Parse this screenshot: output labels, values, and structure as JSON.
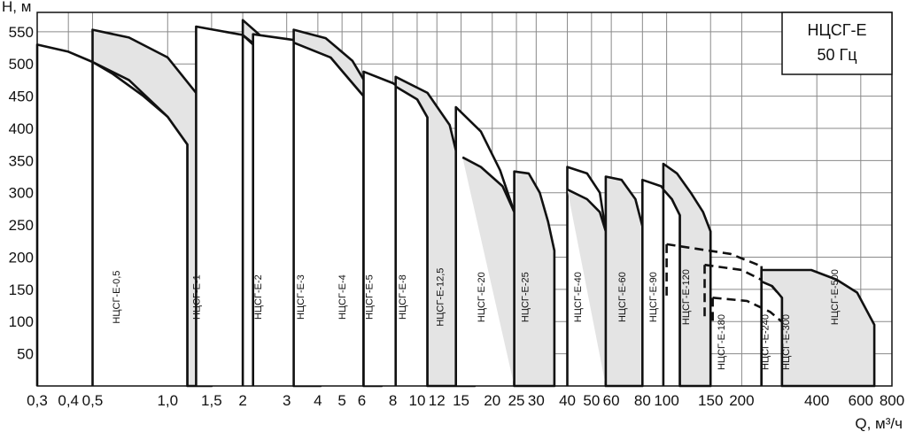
{
  "chart_data": {
    "type": "area",
    "xlabel": "Q, м³/ч",
    "ylabel": "Н, м",
    "x_scale": "log",
    "xlim": [
      0.3,
      800
    ],
    "ylim": [
      0,
      580
    ],
    "grid": true,
    "x_ticks": [
      {
        "value": 0.3,
        "label": "0,3"
      },
      {
        "value": 0.4,
        "label": "0,4"
      },
      {
        "value": 0.5,
        "label": "0,5"
      },
      {
        "value": 1.0,
        "label": "1,0"
      },
      {
        "value": 1.5,
        "label": "1,5"
      },
      {
        "value": 2,
        "label": "2"
      },
      {
        "value": 3,
        "label": "3"
      },
      {
        "value": 4,
        "label": "4"
      },
      {
        "value": 5,
        "label": "5"
      },
      {
        "value": 6,
        "label": "6"
      },
      {
        "value": 8,
        "label": "8"
      },
      {
        "value": 10,
        "label": "10"
      },
      {
        "value": 12,
        "label": "12"
      },
      {
        "value": 15,
        "label": "15"
      },
      {
        "value": 20,
        "label": "20"
      },
      {
        "value": 25,
        "label": "25"
      },
      {
        "value": 30,
        "label": "30"
      },
      {
        "value": 40,
        "label": "40"
      },
      {
        "value": 50,
        "label": "50"
      },
      {
        "value": 60,
        "label": "60"
      },
      {
        "value": 80,
        "label": "80"
      },
      {
        "value": 100,
        "label": "100"
      },
      {
        "value": 150,
        "label": "150"
      },
      {
        "value": 200,
        "label": "200"
      },
      {
        "value": 400,
        "label": "400"
      },
      {
        "value": 600,
        "label": "600"
      },
      {
        "value": 800,
        "label": "800"
      }
    ],
    "y_ticks": [
      50,
      100,
      150,
      200,
      250,
      300,
      350,
      400,
      450,
      500,
      550
    ],
    "legend": {
      "line1": "НЦСГ-Е",
      "line2": "50 Гц",
      "position": "top-right"
    },
    "series": [
      {
        "name": "НЦСГ-Е-0,5",
        "style": "open",
        "label_q": 0.62,
        "top": [
          [
            0.3,
            530
          ],
          [
            0.4,
            519
          ],
          [
            0.5,
            503
          ],
          [
            0.6,
            485
          ],
          [
            0.8,
            450
          ],
          [
            1.0,
            418
          ],
          [
            1.2,
            375
          ]
        ],
        "bottom": []
      },
      {
        "name": "НЦСГ-Е-1",
        "style": "filled",
        "label_q": 1.3,
        "top": [
          [
            0.5,
            553
          ],
          [
            0.7,
            541
          ],
          [
            1.0,
            510
          ],
          [
            1.3,
            455
          ],
          [
            1.5,
            403
          ]
        ],
        "bottom": [
          [
            0.5,
            503
          ],
          [
            0.7,
            475
          ],
          [
            1.0,
            418
          ],
          [
            1.2,
            375
          ]
        ]
      },
      {
        "name": "НЦСГ-Е-2",
        "style": "open",
        "label_q": 2.3,
        "top": [
          [
            1.3,
            558
          ],
          [
            2.0,
            545
          ],
          [
            2.5,
            510
          ],
          [
            3.2,
            425
          ]
        ],
        "bottom": []
      },
      {
        "name": "НЦСГ-Е-3",
        "style": "filled",
        "label_q": 3.4,
        "top": [
          [
            2.0,
            568
          ],
          [
            2.5,
            535
          ],
          [
            3.2,
            480
          ],
          [
            3.8,
            400
          ],
          [
            4.1,
            335
          ]
        ],
        "bottom": [
          [
            2.0,
            545
          ],
          [
            2.5,
            515
          ],
          [
            3.2,
            425
          ]
        ]
      },
      {
        "name": "НЦСГ-Е-4",
        "style": "open",
        "label_q": 5.0,
        "top": [
          [
            2.2,
            546
          ],
          [
            3.5,
            535
          ],
          [
            4.5,
            510
          ],
          [
            6.1,
            450
          ]
        ],
        "bottom": []
      },
      {
        "name": "НЦСГ-Е-5",
        "style": "filled",
        "label_q": 6.4,
        "top": [
          [
            3.2,
            553
          ],
          [
            4.3,
            540
          ],
          [
            5.5,
            505
          ],
          [
            6.8,
            445
          ],
          [
            7.2,
            403
          ]
        ],
        "bottom": [
          [
            3.2,
            533
          ],
          [
            4.5,
            510
          ],
          [
            6.1,
            450
          ]
        ]
      },
      {
        "name": "НЦСГ-Е-8",
        "style": "open",
        "label_q": 8.7,
        "top": [
          [
            6.1,
            488
          ],
          [
            8.0,
            470
          ],
          [
            10.0,
            445
          ],
          [
            11.0,
            417
          ]
        ],
        "bottom": []
      },
      {
        "name": "НЦСГ-Е-12,5",
        "style": "filled",
        "label_q": 12.3,
        "top": [
          [
            8.2,
            480
          ],
          [
            11.0,
            455
          ],
          [
            13.5,
            405
          ],
          [
            15.5,
            310
          ],
          [
            17.0,
            185
          ]
        ],
        "bottom": [
          [
            8.2,
            465
          ],
          [
            10.0,
            445
          ],
          [
            11.0,
            417
          ]
        ]
      },
      {
        "name": "НЦСГ-Е-20",
        "style": "open",
        "label_q": 18.0,
        "top": [
          [
            14.3,
            433
          ],
          [
            18.0,
            395
          ],
          [
            21.5,
            335
          ],
          [
            24.5,
            270
          ]
        ],
        "bottom": []
      },
      {
        "name": "НЦСГ-Е-25",
        "style": "filled",
        "label_q": 27.0,
        "top": [
          [
            24.5,
            333
          ],
          [
            28.0,
            330
          ],
          [
            31.0,
            300
          ],
          [
            33.5,
            255
          ],
          [
            35.5,
            210
          ]
        ],
        "bottom": [
          [
            15.2,
            355
          ],
          [
            18.0,
            340
          ],
          [
            22.0,
            310
          ],
          [
            24.5,
            270
          ]
        ]
      },
      {
        "name": "НЦСГ-Е-40",
        "style": "open",
        "label_q": 44.0,
        "top": [
          [
            40.0,
            340
          ],
          [
            48.0,
            330
          ],
          [
            54.0,
            300
          ],
          [
            57.0,
            240
          ]
        ],
        "bottom": []
      },
      {
        "name": "НЦСГ-Е-60",
        "style": "filled",
        "label_q": 66.0,
        "top": [
          [
            57.0,
            325
          ],
          [
            66.0,
            320
          ],
          [
            75.0,
            290
          ],
          [
            80.0,
            248
          ]
        ],
        "bottom": [
          [
            40.0,
            305
          ],
          [
            48.0,
            290
          ],
          [
            54.0,
            270
          ],
          [
            57.0,
            240
          ]
        ]
      },
      {
        "name": "НЦСГ-Е-90",
        "style": "open",
        "label_q": 88.0,
        "top": [
          [
            80.0,
            320
          ],
          [
            95.0,
            310
          ],
          [
            105.0,
            290
          ],
          [
            113.0,
            265
          ]
        ],
        "bottom": []
      },
      {
        "name": "НЦСГ-Е-120",
        "style": "filled",
        "label_q": 119.0,
        "top": [
          [
            97.0,
            345
          ],
          [
            110.0,
            330
          ],
          [
            125.0,
            300
          ],
          [
            140.0,
            270
          ],
          [
            150.0,
            240
          ]
        ],
        "bottom": [
          [
            97.0,
            305
          ],
          [
            105.0,
            290
          ],
          [
            113.0,
            265
          ]
        ]
      },
      {
        "name": "НЦСГ-Е-180",
        "style": "dashed",
        "label_q": 165.0,
        "top": [
          [
            100.0,
            220
          ],
          [
            180.0,
            205
          ],
          [
            240.0,
            186
          ]
        ],
        "bottom": []
      },
      {
        "name": "НЦСГ-Е-240",
        "style": "dashed",
        "label_q": 248.0,
        "top": [
          [
            142.0,
            188
          ],
          [
            200.0,
            180
          ],
          [
            260.0,
            158
          ],
          [
            290.0,
            137
          ]
        ],
        "bottom": []
      },
      {
        "name": "НЦСГ-Е-300",
        "style": "dashed",
        "label_q": 300.0,
        "top": [
          [
            153.0,
            137
          ],
          [
            210.0,
            132
          ],
          [
            260.0,
            115
          ],
          [
            310.0,
            90
          ]
        ],
        "bottom": []
      },
      {
        "name": "НЦСГ-Е-500",
        "style": "filled",
        "label_q": 470.0,
        "top": [
          [
            240.0,
            180
          ],
          [
            380.0,
            180
          ],
          [
            480.0,
            165
          ],
          [
            580.0,
            145
          ],
          [
            680.0,
            95
          ]
        ],
        "bottom": [
          [
            240.0,
            162
          ],
          [
            265.0,
            155
          ],
          [
            290.0,
            137
          ]
        ]
      }
    ]
  }
}
